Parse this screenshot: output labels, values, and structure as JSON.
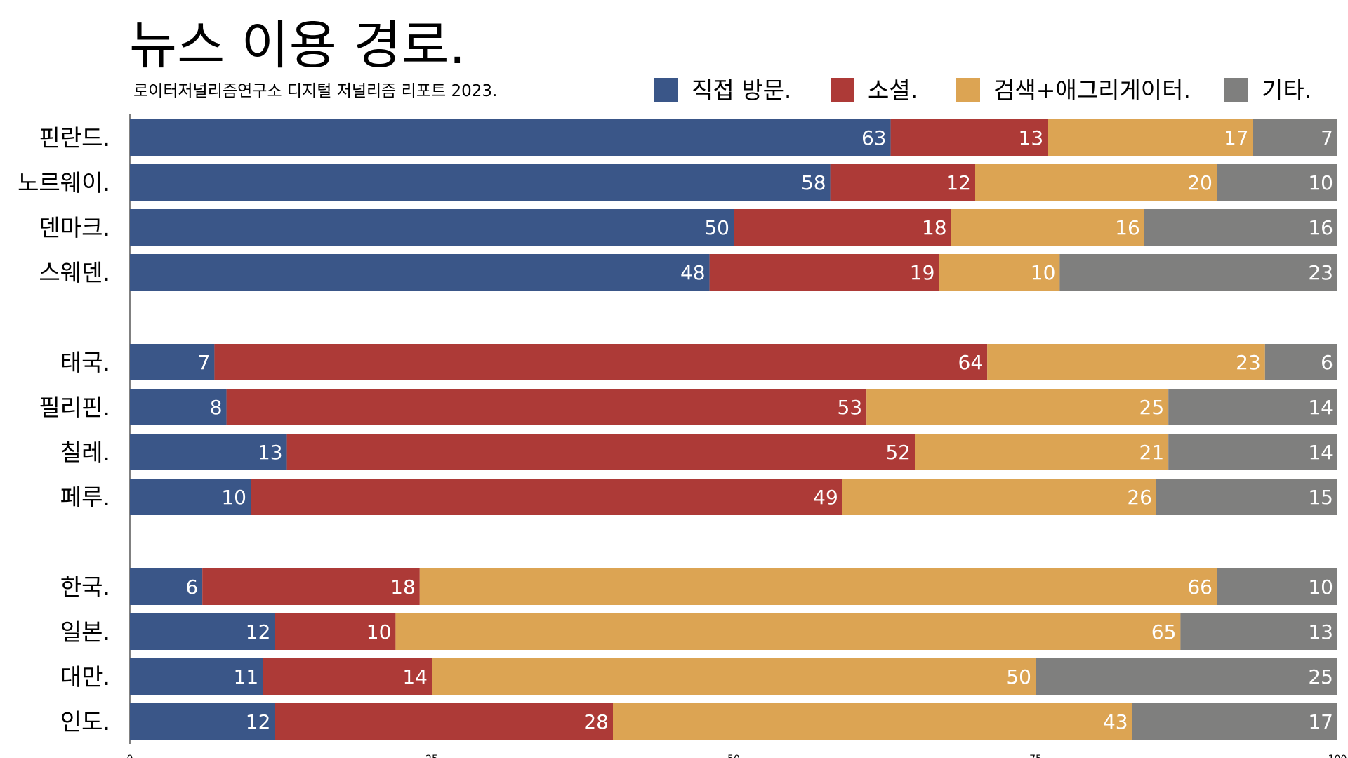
{
  "chart_data": {
    "type": "bar",
    "orientation": "horizontal",
    "stacked": true,
    "title": "뉴스 이용 경로.",
    "subtitle": "로이터저널리즘연구소 디지털 저널리즘 리포트 2023.",
    "legend_position": "top-right",
    "grid": false,
    "xlim": [
      0,
      100
    ],
    "x_ticks": [
      0,
      25,
      50,
      75,
      100
    ],
    "groups": [
      {
        "name": "nordic",
        "categories": [
          "핀란드.",
          "노르웨이.",
          "덴마크.",
          "스웨덴."
        ]
      },
      {
        "name": "southeast-asia-latin-america",
        "categories": [
          "태국.",
          "필리핀.",
          "칠레.",
          "페루."
        ]
      },
      {
        "name": "east-south-asia",
        "categories": [
          "한국.",
          "일본.",
          "대만.",
          "인도."
        ]
      }
    ],
    "categories": [
      "핀란드.",
      "노르웨이.",
      "덴마크.",
      "스웨덴.",
      "태국.",
      "필리핀.",
      "칠레.",
      "페루.",
      "한국.",
      "일본.",
      "대만.",
      "인도."
    ],
    "series": [
      {
        "name": "직접 방문.",
        "color": "#3a5688",
        "values": [
          63,
          58,
          50,
          48,
          7,
          8,
          13,
          10,
          6,
          12,
          11,
          12
        ]
      },
      {
        "name": "소셜.",
        "color": "#ad3a37",
        "values": [
          13,
          12,
          18,
          19,
          64,
          53,
          52,
          49,
          18,
          10,
          14,
          28
        ]
      },
      {
        "name": "검색+애그리게이터.",
        "color": "#dca453",
        "values": [
          17,
          20,
          16,
          10,
          23,
          25,
          21,
          26,
          66,
          65,
          50,
          43
        ]
      },
      {
        "name": "기타.",
        "color": "#7f7f7e",
        "values": [
          7,
          10,
          16,
          23,
          6,
          14,
          14,
          15,
          10,
          13,
          25,
          17
        ]
      }
    ]
  }
}
